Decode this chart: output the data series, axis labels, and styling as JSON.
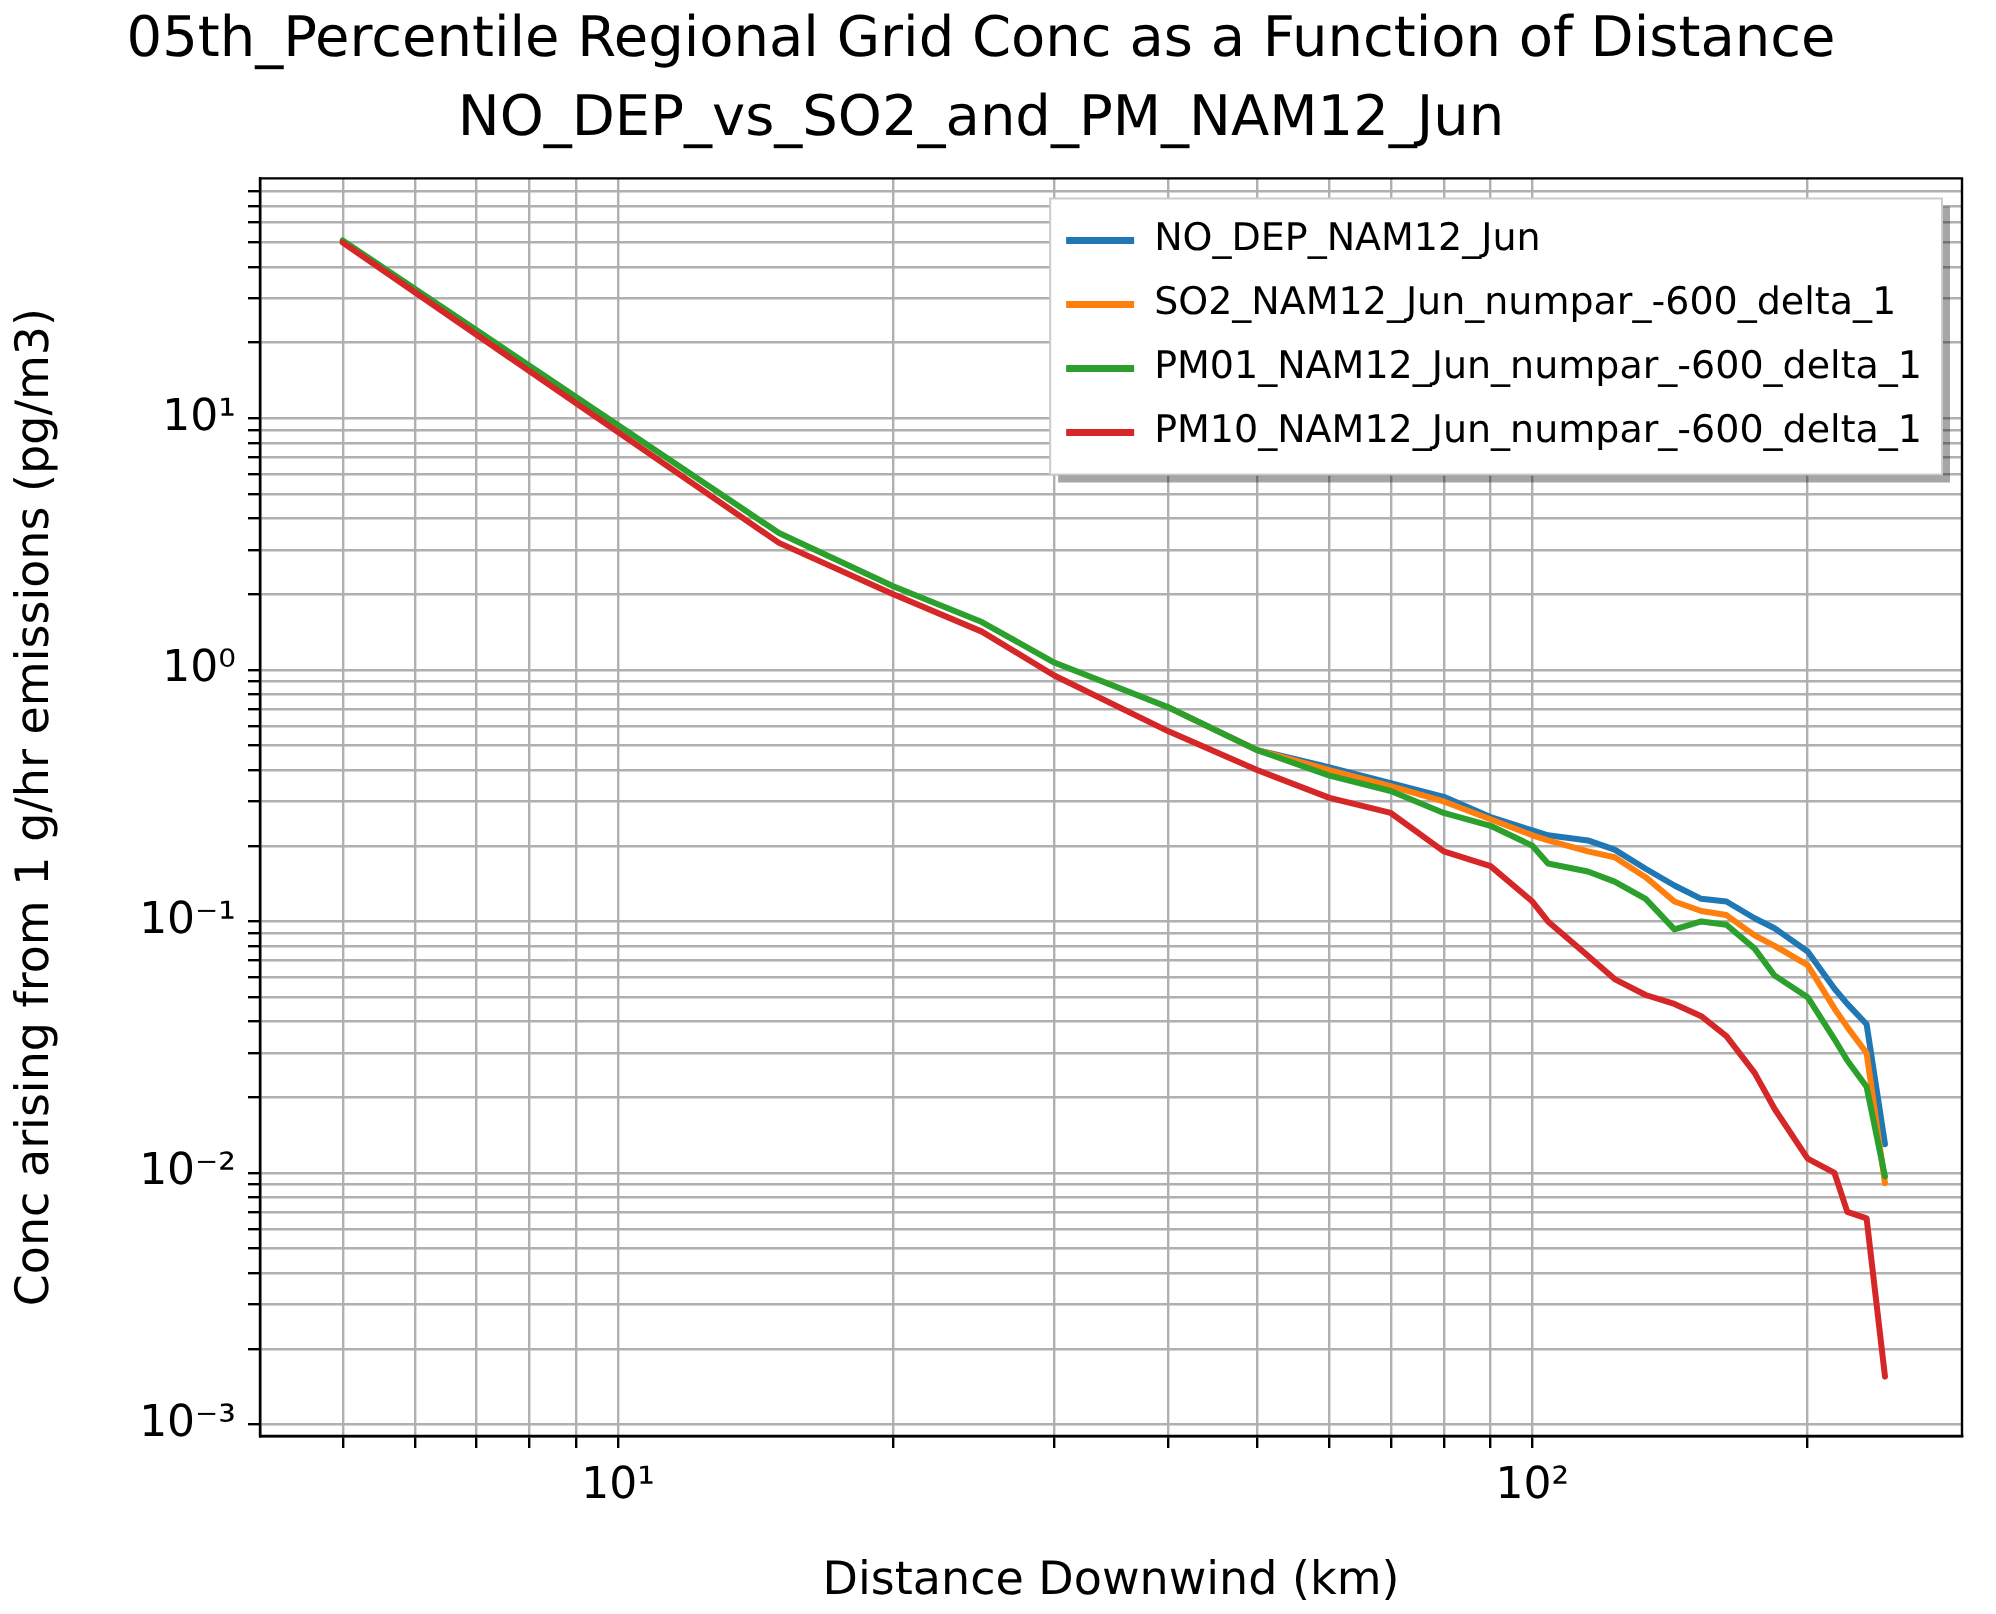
{
  "chart_data": {
    "type": "line",
    "title": "05th_Percentile Regional Grid Conc as a Function of Distance",
    "subtitle": "NO_DEP_vs_SO2_and_PM_NAM12_Jun",
    "xlabel": "Distance Downwind (km)",
    "ylabel": "Conc arising from 1 g/hr emissions (pg/m3)",
    "x": [
      5,
      15,
      20,
      25,
      30,
      40,
      50,
      60,
      70,
      80,
      90,
      100,
      104,
      115,
      123,
      133,
      143,
      153,
      163,
      175,
      184,
      200,
      214,
      221,
      232,
      243
    ],
    "series": [
      {
        "name": "NO_DEP_NAM12_Jun",
        "color": "#1f77b4",
        "values": [
          null,
          null,
          null,
          null,
          null,
          0.71,
          0.48,
          0.41,
          0.355,
          0.313,
          0.26,
          0.23,
          0.22,
          0.21,
          0.193,
          0.162,
          0.139,
          0.123,
          0.12,
          0.103,
          0.094,
          0.076,
          0.054,
          0.047,
          0.039,
          0.013
        ]
      },
      {
        "name": "SO2_NAM12_Jun_numpar_-600_delta_1",
        "color": "#ff7f0e",
        "values": [
          null,
          null,
          null,
          null,
          null,
          0.71,
          0.48,
          0.4,
          0.345,
          0.3,
          0.255,
          0.22,
          0.21,
          0.19,
          0.18,
          0.15,
          0.12,
          0.11,
          0.106,
          0.088,
          0.08,
          0.067,
          0.045,
          0.038,
          0.03,
          0.0091
        ]
      },
      {
        "name": "PM01_NAM12_Jun_numpar_-600_delta_1",
        "color": "#2ca02c",
        "values": [
          51,
          3.5,
          2.15,
          1.55,
          1.07,
          0.71,
          0.48,
          0.38,
          0.33,
          0.27,
          0.24,
          0.2,
          0.17,
          0.158,
          0.144,
          0.123,
          0.093,
          0.1,
          0.097,
          0.078,
          0.061,
          0.05,
          0.034,
          0.028,
          0.022,
          0.0097
        ]
      },
      {
        "name": "PM10_NAM12_Jun_numpar_-600_delta_1",
        "color": "#d62728",
        "values": [
          50,
          3.2,
          2.0,
          1.42,
          0.95,
          0.57,
          0.4,
          0.31,
          0.27,
          0.19,
          0.166,
          0.12,
          0.1,
          0.073,
          0.059,
          0.051,
          0.047,
          0.042,
          0.035,
          0.025,
          0.018,
          0.0114,
          0.01,
          0.007,
          0.0066,
          0.00155
        ]
      }
    ],
    "log": "xy",
    "xlim": [
      4.06,
      295
    ],
    "ylim": [
      0.0009,
      90
    ],
    "xticks": [
      {
        "value": 5,
        "label": null
      },
      {
        "value": 6,
        "label": null
      },
      {
        "value": 7,
        "label": null
      },
      {
        "value": 8,
        "label": null
      },
      {
        "value": 9,
        "label": null
      },
      {
        "value": 10,
        "label": "10¹"
      },
      {
        "value": 20,
        "label": null
      },
      {
        "value": 30,
        "label": null
      },
      {
        "value": 40,
        "label": null
      },
      {
        "value": 50,
        "label": null
      },
      {
        "value": 60,
        "label": null
      },
      {
        "value": 70,
        "label": null
      },
      {
        "value": 80,
        "label": null
      },
      {
        "value": 90,
        "label": null
      },
      {
        "value": 100,
        "label": "10²"
      },
      {
        "value": 200,
        "label": null
      }
    ],
    "yticks": [
      {
        "value": 0.001,
        "label": "10⁻³"
      },
      {
        "value": 0.002,
        "label": null
      },
      {
        "value": 0.003,
        "label": null
      },
      {
        "value": 0.004,
        "label": null
      },
      {
        "value": 0.005,
        "label": null
      },
      {
        "value": 0.006,
        "label": null
      },
      {
        "value": 0.007,
        "label": null
      },
      {
        "value": 0.008,
        "label": null
      },
      {
        "value": 0.009,
        "label": null
      },
      {
        "value": 0.01,
        "label": "10⁻²"
      },
      {
        "value": 0.02,
        "label": null
      },
      {
        "value": 0.03,
        "label": null
      },
      {
        "value": 0.04,
        "label": null
      },
      {
        "value": 0.05,
        "label": null
      },
      {
        "value": 0.06,
        "label": null
      },
      {
        "value": 0.07,
        "label": null
      },
      {
        "value": 0.08,
        "label": null
      },
      {
        "value": 0.09,
        "label": null
      },
      {
        "value": 0.1,
        "label": "10⁻¹"
      },
      {
        "value": 0.2,
        "label": null
      },
      {
        "value": 0.3,
        "label": null
      },
      {
        "value": 0.4,
        "label": null
      },
      {
        "value": 0.5,
        "label": null
      },
      {
        "value": 0.6,
        "label": null
      },
      {
        "value": 0.7,
        "label": null
      },
      {
        "value": 0.8,
        "label": null
      },
      {
        "value": 0.9,
        "label": null
      },
      {
        "value": 1,
        "label": "10⁰"
      },
      {
        "value": 2,
        "label": null
      },
      {
        "value": 3,
        "label": null
      },
      {
        "value": 4,
        "label": null
      },
      {
        "value": 5,
        "label": null
      },
      {
        "value": 6,
        "label": null
      },
      {
        "value": 7,
        "label": null
      },
      {
        "value": 8,
        "label": null
      },
      {
        "value": 9,
        "label": null
      },
      {
        "value": 10,
        "label": "10¹"
      },
      {
        "value": 20,
        "label": null
      },
      {
        "value": 30,
        "label": null
      },
      {
        "value": 40,
        "label": null
      },
      {
        "value": 50,
        "label": null
      },
      {
        "value": 60,
        "label": null
      },
      {
        "value": 70,
        "label": null
      },
      {
        "value": 80,
        "label": null
      }
    ],
    "grid": true,
    "legend": "top right"
  }
}
